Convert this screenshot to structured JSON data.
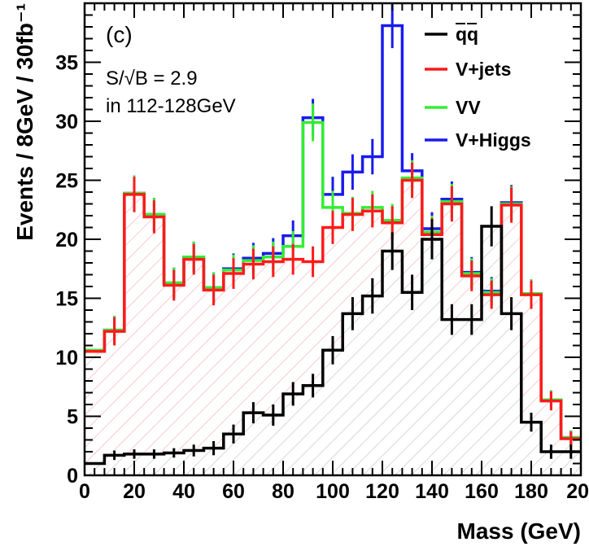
{
  "chart_data": {
    "type": "line",
    "subtype": "stacked-step-histogram",
    "panel_label": "(c)",
    "xlabel": "Mass (GeV)",
    "ylabel": "Events / 8GeV / 30fb⁻¹",
    "xlim": [
      0,
      200
    ],
    "ylim": [
      0,
      40
    ],
    "x_ticks": [
      0,
      20,
      40,
      60,
      80,
      100,
      120,
      140,
      160,
      180
    ],
    "x_tick_labels": [
      "0",
      "20",
      "40",
      "60",
      "80",
      "100",
      "120",
      "140",
      "160",
      "180"
    ],
    "x_last_tick_label": "20",
    "y_ticks": [
      0,
      5,
      10,
      15,
      20,
      25,
      30,
      35
    ],
    "y_tick_labels": [
      "0",
      "5",
      "10",
      "15",
      "20",
      "25",
      "30",
      "35"
    ],
    "bin_width": 8,
    "bin_edges": [
      0,
      8,
      16,
      24,
      32,
      40,
      48,
      56,
      64,
      72,
      80,
      88,
      96,
      104,
      112,
      120,
      128,
      136,
      144,
      152,
      160,
      168,
      176,
      184,
      192,
      200
    ],
    "grid": false,
    "legend_position": "top-right",
    "annotations": [
      "S/√B = 2.9",
      "in 112-128GeV"
    ],
    "series": [
      {
        "name": "q̅q̅",
        "legend_label": "qq",
        "color": "#000000",
        "hatch": "light-gray-diagonal",
        "values": [
          1.0,
          1.7,
          1.8,
          1.8,
          1.9,
          2.1,
          2.3,
          3.5,
          5.3,
          5.1,
          6.9,
          7.6,
          10.6,
          13.7,
          15.2,
          19.0,
          15.5,
          20.0,
          13.2,
          13.2,
          21.1,
          13.7,
          4.5,
          2.0,
          2.0
        ],
        "errors": [
          0,
          0.4,
          0.4,
          0.4,
          0.4,
          0.5,
          0.6,
          0.8,
          0.9,
          0.9,
          1.0,
          1.0,
          1.2,
          1.4,
          1.5,
          1.6,
          1.5,
          1.7,
          1.3,
          1.3,
          1.7,
          1.4,
          0.8,
          0.6,
          0.6
        ]
      },
      {
        "name": "V+jets",
        "color": "#ff1a1a",
        "hatch": "light-pink-diagonal",
        "values": [
          10.5,
          12.2,
          23.8,
          21.9,
          16.1,
          18.3,
          15.7,
          17.1,
          17.9,
          18.1,
          18.3,
          18.1,
          21.0,
          22.1,
          22.4,
          21.4,
          25.0,
          20.4,
          23.0,
          16.9,
          15.3,
          22.9,
          15.3,
          6.3,
          3.1
        ],
        "errors": [
          0,
          1.2,
          1.5,
          1.4,
          1.3,
          1.3,
          1.3,
          1.3,
          1.3,
          1.3,
          1.3,
          1.3,
          1.4,
          1.4,
          1.4,
          1.4,
          1.5,
          1.4,
          1.5,
          1.3,
          1.2,
          1.5,
          1.2,
          0.8,
          0.6
        ]
      },
      {
        "name": "VV",
        "color": "#33ee33",
        "hatch": "none",
        "values": [
          10.6,
          12.3,
          23.9,
          22.1,
          16.3,
          18.5,
          15.9,
          17.4,
          18.2,
          18.5,
          19.4,
          29.9,
          22.7,
          22.2,
          22.7,
          21.6,
          25.2,
          20.6,
          23.2,
          17.1,
          15.5,
          23.0,
          15.4,
          6.4,
          3.2
        ],
        "errors": [
          0,
          1.2,
          1.5,
          1.4,
          1.3,
          1.3,
          1.3,
          1.3,
          1.3,
          1.3,
          1.3,
          1.6,
          1.4,
          1.4,
          1.4,
          1.4,
          1.5,
          1.4,
          1.5,
          1.3,
          1.2,
          1.5,
          1.2,
          0.8,
          0.6
        ]
      },
      {
        "name": "V+Higgs",
        "color": "#1a1aee",
        "hatch": "none",
        "values": [
          10.6,
          12.3,
          23.9,
          22.1,
          16.3,
          18.5,
          15.9,
          17.5,
          18.4,
          18.8,
          20.3,
          30.3,
          23.8,
          25.7,
          27.0,
          38.1,
          25.8,
          20.9,
          23.4,
          17.2,
          15.6,
          23.1,
          15.4,
          6.4,
          3.2
        ],
        "errors": [
          0,
          1.2,
          1.5,
          1.4,
          1.3,
          1.3,
          1.3,
          1.3,
          1.3,
          1.3,
          1.3,
          1.6,
          1.5,
          1.5,
          1.5,
          1.9,
          1.5,
          1.4,
          1.5,
          1.3,
          1.2,
          1.5,
          1.2,
          0.8,
          0.6
        ]
      }
    ]
  }
}
